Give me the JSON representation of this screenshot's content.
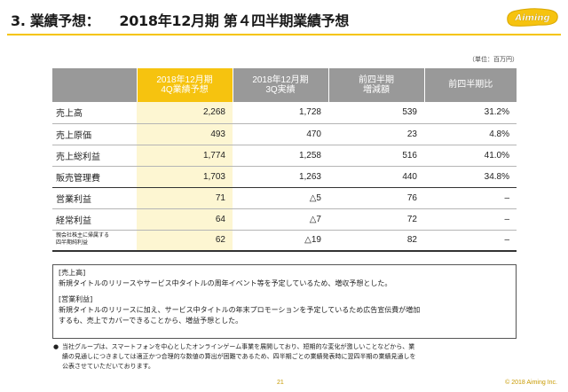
{
  "header": {
    "title_prefix": "3. 業績予想：",
    "title_main": "2018年12月期 第４四半期業績予想",
    "logo_text": "Aiming"
  },
  "table": {
    "unit_note": "（単位：百万円）",
    "columns": [
      {
        "line1": "2018年12月期",
        "line2": "4Q業績予想"
      },
      {
        "line1": "2018年12月期",
        "line2": "3Q実績"
      },
      {
        "line1": "前四半期",
        "line2": "増減額"
      },
      {
        "line1": "前四半期比",
        "line2": ""
      }
    ],
    "rows": [
      {
        "label": "売上高",
        "label2": "",
        "cells": [
          "2,268",
          "1,728",
          "539",
          "31.2%"
        ]
      },
      {
        "label": "売上原価",
        "label2": "",
        "cells": [
          "493",
          "470",
          "23",
          "4.8%"
        ]
      },
      {
        "label": "売上総利益",
        "label2": "",
        "cells": [
          "1,774",
          "1,258",
          "516",
          "41.0%"
        ]
      },
      {
        "label": "販売管理費",
        "label2": "",
        "cells": [
          "1,703",
          "1,263",
          "440",
          "34.8%"
        ]
      },
      {
        "label": "営業利益",
        "label2": "",
        "cells": [
          "71",
          "△5",
          "76",
          "–"
        ]
      },
      {
        "label": "経常利益",
        "label2": "",
        "cells": [
          "64",
          "△7",
          "72",
          "–"
        ]
      },
      {
        "label": "親会社株主に帰属する",
        "label2": "四半期純利益",
        "cells": [
          "62",
          "△19",
          "82",
          "–"
        ]
      }
    ]
  },
  "notes": {
    "sales_heading": "[売上高]",
    "sales_text": "新規タイトルのリリースやサービス中タイトルの周年イベント等を予定しているため、増収予想とした。",
    "op_heading": "[営業利益]",
    "op_text_line1": "新規タイトルのリリースに加え、サービス中タイトルの年末プロモーションを予定しているため広告宣伝費が増加",
    "op_text_line2": "するも、売上でカバーできることから、増益予想とした。"
  },
  "footnote": {
    "bullet": "●",
    "line1": "当社グループは、スマートフォンを中心としたオンラインゲーム事業を展開しており、短期的な変化が激しいことなどから、業",
    "line2": "績の見通しにつきましては適正かつ合理的な数値の算出が困難であるため、四半期ごとの業績発表時に翌四半期の業績見通しを",
    "line3": "公表させていただいております。"
  },
  "footer": {
    "page_number": "21",
    "copyright": "© 2018 Aiming Inc."
  },
  "colors": {
    "accent_yellow": "#f6c30f",
    "highlight_cell": "#fdf6d2",
    "header_gray": "#999999",
    "footer_gold": "#c89a00"
  }
}
